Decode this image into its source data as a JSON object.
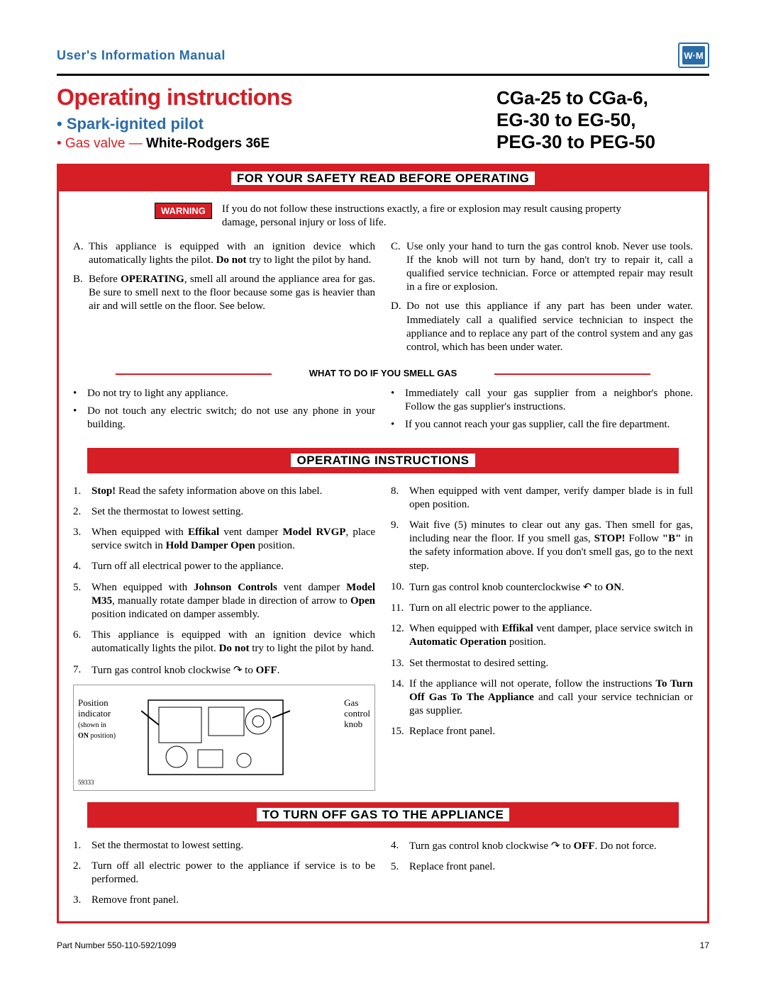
{
  "colors": {
    "brand_blue": "#2a6ca8",
    "brand_red": "#d51e26",
    "text": "#000000",
    "background": "#ffffff"
  },
  "header": {
    "manual_title": "User's Information Manual",
    "logo_text": "W·M"
  },
  "title": {
    "main": "Operating instructions",
    "sub1": "• Spark-ignited pilot",
    "sub2_prefix": "• Gas valve — ",
    "sub2_bold": "White-Rodgers 36E",
    "models_l1": "CGa-25 to CGa-6,",
    "models_l2": "EG-30 to EG-50,",
    "models_l3": "PEG-30 to PEG-50"
  },
  "sections": {
    "safety_bar": "FOR YOUR SAFETY READ BEFORE OPERATING",
    "operating_bar": "OPERATING INSTRUCTIONS",
    "turnoff_bar": "TO TURN OFF GAS TO THE APPLIANCE",
    "gas_smell_header": "WHAT TO DO IF YOU SMELL GAS"
  },
  "warning": {
    "badge": "WARNING",
    "text": "If you do not follow these instructions exactly, a fire or explosion may result causing property damage, personal injury or loss of life."
  },
  "safety_left": [
    {
      "lbl": "A.",
      "html": "This appliance is equipped with an ignition device which automatically lights the pilot. <span class='b'>Do not</span> try to light the pilot by hand."
    },
    {
      "lbl": "B.",
      "html": "Before <span class='b'>OPERATING</span>, smell all around the appliance area for gas. Be sure to smell next to the floor because some gas is heavier than air and will settle on the floor. See below."
    }
  ],
  "safety_right": [
    {
      "lbl": "C.",
      "html": "Use only your hand to turn the gas control knob. Never use tools. If the knob will not turn by hand, don't try to repair it, call a qualified service technician. Force or attempted repair may result in a fire or explosion."
    },
    {
      "lbl": "D.",
      "html": "Do not use this appliance if any part has been under water. Immediately call a qualified service technician to inspect the appliance and to replace any part of the control system and any gas control, which has been under water."
    }
  ],
  "smell_left": [
    "Do not try to light any appliance.",
    "Do not touch any electric switch; do not use any phone in your building."
  ],
  "smell_right": [
    "Immediately call your gas supplier from a neighbor's phone. Follow the gas supplier's instructions.",
    "If you cannot reach your gas supplier, call the fire department."
  ],
  "operating_left": [
    "<span class='b'>Stop!</span> Read the safety information above on this label.",
    "Set the thermostat to lowest setting.",
    "When equipped with <span class='b'>Effikal</span> vent damper <span class='b'>Model RVGP</span>, place service switch in <span class='b'>Hold Damper Open</span> position.",
    "Turn off all electrical power to the appliance.",
    "When equipped with <span class='b'>Johnson Controls</span> vent damper <span class='b'>Model M35</span>, manually rotate damper blade in direction of arrow to <span class='b'>Open</span> position indicated on damper assembly.",
    "This appliance is equipped with an ignition device which automatically lights the pilot. <span class='b'>Do not</span> try to light the pilot by hand.",
    "Turn gas control knob clockwise <span class='arrow-icon'>↷</span> to <span class='b'>OFF</span>."
  ],
  "operating_right": [
    "When equipped with vent damper, verify damper blade is in full open position.",
    "Wait five (5) minutes to clear out any gas. Then smell for gas, including near the floor. If you smell gas, <span class='b'>STOP!</span> Follow <span class='b'>\"B\"</span> in the safety information above. If you don't smell gas, go to the next step.",
    "Turn gas control knob counterclockwise <span class='arrow-icon'>↶</span> to <span class='b'>ON</span>.",
    "Turn on all electric power to the appliance.",
    "When equipped with <span class='b'>Effikal</span> vent damper, place service switch in <span class='b'>Automatic Operation</span> position.",
    "Set thermostat to desired setting.",
    "If the appliance will not operate, follow the instructions <span class='b'>To Turn Off Gas To The Appliance</span> and call your service technician or gas supplier.",
    "Replace front panel."
  ],
  "operating_right_start": 8,
  "turnoff_left": [
    "Set the thermostat to lowest setting.",
    "Turn off all electric power to the appliance if service is to be performed.",
    "Remove front panel."
  ],
  "turnoff_right": [
    "Turn gas control knob clockwise <span class='arrow-icon'>↷</span> to <span class='b'>OFF</span>. Do not force.",
    "Replace front panel."
  ],
  "turnoff_right_start": 4,
  "diagram": {
    "pos_label_l1": "Position",
    "pos_label_l2": "indicator",
    "pos_label_l3": "(shown in",
    "pos_label_l4": "ON position)",
    "gas_label_l1": "Gas",
    "gas_label_l2": "control",
    "gas_label_l3": "knob",
    "number": "59333"
  },
  "footer": {
    "part": "Part Number 550-110-592/1099",
    "page": "17"
  }
}
